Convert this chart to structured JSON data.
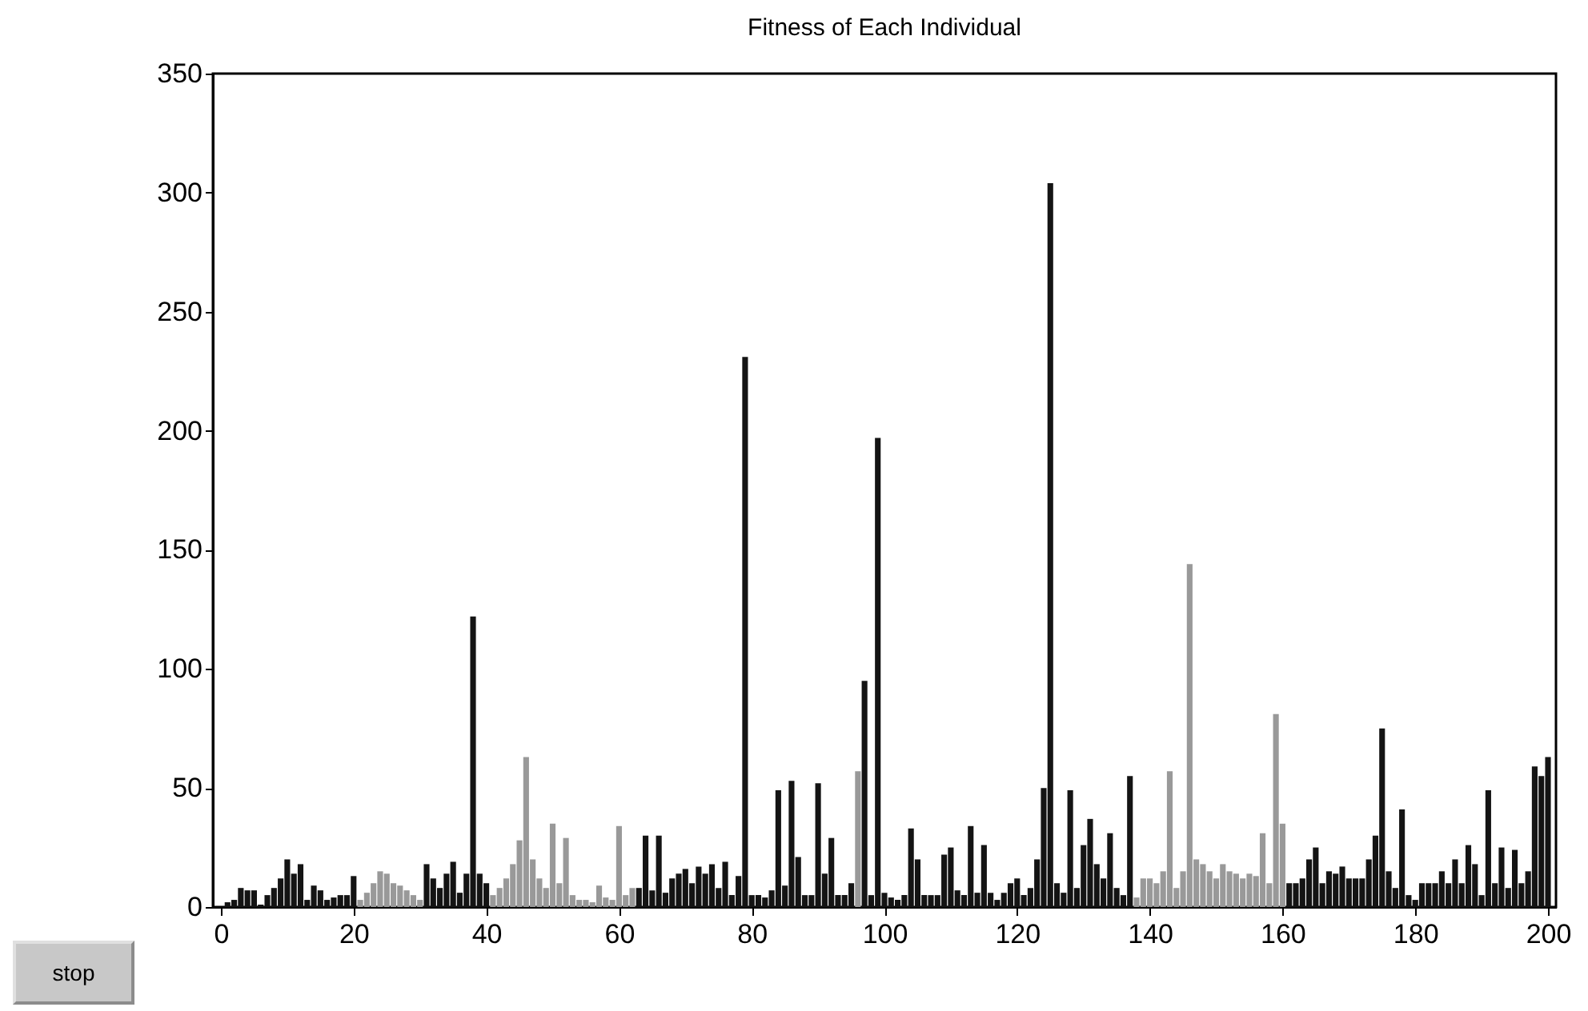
{
  "chart_data": {
    "type": "bar",
    "title": "Fitness of Each Individual",
    "x": [
      1,
      2,
      3,
      4,
      5,
      6,
      7,
      8,
      9,
      10,
      11,
      12,
      13,
      14,
      15,
      16,
      17,
      18,
      19,
      20,
      21,
      22,
      23,
      24,
      25,
      26,
      27,
      28,
      29,
      30,
      31,
      32,
      33,
      34,
      35,
      36,
      37,
      38,
      39,
      40,
      41,
      42,
      43,
      44,
      45,
      46,
      47,
      48,
      49,
      50,
      51,
      52,
      53,
      54,
      55,
      56,
      57,
      58,
      59,
      60,
      61,
      62,
      63,
      64,
      65,
      66,
      67,
      68,
      69,
      70,
      71,
      72,
      73,
      74,
      75,
      76,
      77,
      78,
      79,
      80,
      81,
      82,
      83,
      84,
      85,
      86,
      87,
      88,
      89,
      90,
      91,
      92,
      93,
      94,
      95,
      96,
      97,
      98,
      99,
      100,
      101,
      102,
      103,
      104,
      105,
      106,
      107,
      108,
      109,
      110,
      111,
      112,
      113,
      114,
      115,
      116,
      117,
      118,
      119,
      120,
      121,
      122,
      123,
      124,
      125,
      126,
      127,
      128,
      129,
      130,
      131,
      132,
      133,
      134,
      135,
      136,
      137,
      138,
      139,
      140,
      141,
      142,
      143,
      144,
      145,
      146,
      147,
      148,
      149,
      150,
      151,
      152,
      153,
      154,
      155,
      156,
      157,
      158,
      159,
      160,
      161,
      162,
      163,
      164,
      165,
      166,
      167,
      168,
      169,
      170,
      171,
      172,
      173,
      174,
      175,
      176,
      177,
      178,
      179,
      180,
      181,
      182,
      183,
      184,
      185,
      186,
      187,
      188,
      189,
      190,
      191,
      192,
      193,
      194,
      195,
      196,
      197,
      198,
      199,
      200
    ],
    "values": [
      2,
      3,
      8,
      7,
      7,
      1,
      5,
      8,
      12,
      20,
      14,
      18,
      3,
      9,
      7,
      3,
      4,
      5,
      5,
      13,
      3,
      6,
      10,
      15,
      14,
      10,
      9,
      7,
      5,
      3,
      18,
      12,
      8,
      14,
      19,
      6,
      14,
      122,
      14,
      10,
      5,
      8,
      12,
      18,
      28,
      63,
      20,
      12,
      8,
      35,
      10,
      29,
      5,
      3,
      3,
      2,
      9,
      4,
      3,
      34,
      5,
      8,
      8,
      30,
      7,
      30,
      6,
      12,
      14,
      16,
      10,
      17,
      14,
      18,
      8,
      19,
      5,
      13,
      231,
      5,
      5,
      4,
      7,
      49,
      9,
      53,
      21,
      5,
      5,
      52,
      14,
      29,
      5,
      5,
      10,
      57,
      95,
      5,
      197,
      6,
      4,
      3,
      5,
      33,
      20,
      5,
      5,
      5,
      22,
      25,
      7,
      5,
      34,
      6,
      26,
      6,
      3,
      6,
      10,
      12,
      5,
      8,
      20,
      50,
      304,
      10,
      6,
      49,
      8,
      26,
      37,
      18,
      12,
      31,
      8,
      5,
      55,
      4,
      12,
      12,
      10,
      15,
      57,
      8,
      15,
      144,
      20,
      18,
      15,
      12,
      18,
      15,
      14,
      12,
      14,
      13,
      31,
      10,
      81,
      35,
      10,
      10,
      12,
      20,
      25,
      10,
      15,
      14,
      17,
      12,
      12,
      12,
      20,
      30,
      75,
      15,
      8,
      41,
      5,
      3,
      10,
      10,
      10,
      15,
      10,
      20,
      10,
      26,
      18,
      5,
      49,
      10,
      25,
      8,
      24,
      10,
      15,
      59,
      55,
      63
    ],
    "colors": [
      "#141414",
      "#141414",
      "#141414",
      "#141414",
      "#141414",
      "#141414",
      "#141414",
      "#141414",
      "#141414",
      "#141414",
      "#141414",
      "#141414",
      "#141414",
      "#141414",
      "#141414",
      "#141414",
      "#141414",
      "#141414",
      "#141414",
      "#141414",
      "#999999",
      "#999999",
      "#999999",
      "#999999",
      "#999999",
      "#999999",
      "#999999",
      "#999999",
      "#999999",
      "#999999",
      "#141414",
      "#141414",
      "#141414",
      "#141414",
      "#141414",
      "#141414",
      "#141414",
      "#141414",
      "#141414",
      "#141414",
      "#999999",
      "#999999",
      "#999999",
      "#999999",
      "#999999",
      "#999999",
      "#999999",
      "#999999",
      "#999999",
      "#999999",
      "#999999",
      "#999999",
      "#999999",
      "#999999",
      "#999999",
      "#999999",
      "#999999",
      "#999999",
      "#999999",
      "#999999",
      "#999999",
      "#999999",
      "#141414",
      "#141414",
      "#141414",
      "#141414",
      "#141414",
      "#141414",
      "#141414",
      "#141414",
      "#141414",
      "#141414",
      "#141414",
      "#141414",
      "#141414",
      "#141414",
      "#141414",
      "#141414",
      "#141414",
      "#141414",
      "#141414",
      "#141414",
      "#141414",
      "#141414",
      "#141414",
      "#141414",
      "#141414",
      "#141414",
      "#141414",
      "#141414",
      "#141414",
      "#141414",
      "#141414",
      "#141414",
      "#141414",
      "#999999",
      "#141414",
      "#141414",
      "#141414",
      "#141414",
      "#141414",
      "#141414",
      "#141414",
      "#141414",
      "#141414",
      "#141414",
      "#141414",
      "#141414",
      "#141414",
      "#141414",
      "#141414",
      "#141414",
      "#141414",
      "#141414",
      "#141414",
      "#141414",
      "#141414",
      "#141414",
      "#141414",
      "#141414",
      "#141414",
      "#141414",
      "#141414",
      "#141414",
      "#141414",
      "#141414",
      "#141414",
      "#141414",
      "#141414",
      "#141414",
      "#141414",
      "#141414",
      "#141414",
      "#141414",
      "#141414",
      "#141414",
      "#141414",
      "#999999",
      "#999999",
      "#999999",
      "#999999",
      "#999999",
      "#999999",
      "#999999",
      "#999999",
      "#999999",
      "#999999",
      "#999999",
      "#999999",
      "#999999",
      "#999999",
      "#999999",
      "#999999",
      "#999999",
      "#999999",
      "#999999",
      "#999999",
      "#999999",
      "#999999",
      "#999999",
      "#141414",
      "#141414",
      "#141414",
      "#141414",
      "#141414",
      "#141414",
      "#141414",
      "#141414",
      "#141414",
      "#141414",
      "#141414",
      "#141414",
      "#141414",
      "#141414",
      "#141414",
      "#141414",
      "#141414",
      "#141414",
      "#141414",
      "#141414",
      "#141414",
      "#141414",
      "#141414",
      "#141414",
      "#141414",
      "#141414",
      "#141414",
      "#141414",
      "#141414",
      "#141414",
      "#141414",
      "#141414",
      "#141414",
      "#141414",
      "#141414",
      "#141414",
      "#141414",
      "#141414",
      "#141414",
      "#141414"
    ],
    "xlim": [
      0,
      200
    ],
    "xticks": [
      0,
      20,
      40,
      60,
      80,
      100,
      120,
      140,
      160,
      180,
      200
    ],
    "ylim": [
      0,
      350
    ],
    "yticks": [
      0,
      50,
      100,
      150,
      200,
      250,
      300,
      350
    ],
    "annotations": [
      "stop"
    ]
  }
}
